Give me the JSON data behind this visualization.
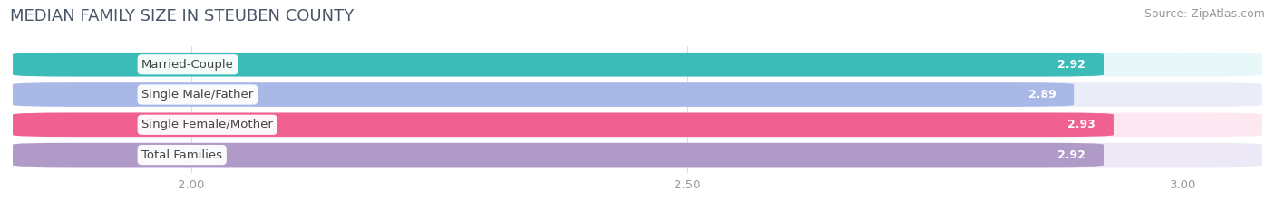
{
  "title": "MEDIAN FAMILY SIZE IN STEUBEN COUNTY",
  "source": "Source: ZipAtlas.com",
  "categories": [
    "Married-Couple",
    "Single Male/Father",
    "Single Female/Mother",
    "Total Families"
  ],
  "values": [
    2.92,
    2.89,
    2.93,
    2.92
  ],
  "bar_colors": [
    "#3bbcb8",
    "#aab8e8",
    "#f06090",
    "#b09ac8"
  ],
  "bar_bg_colors": [
    "#e8f8f8",
    "#eaecf8",
    "#fde8f2",
    "#ece8f5"
  ],
  "value_labels": [
    "2.92",
    "2.89",
    "2.93",
    "2.92"
  ],
  "xmin": 1.82,
  "xmax": 3.08,
  "xticks": [
    2.0,
    2.5,
    3.0
  ],
  "xtick_labels": [
    "2.00",
    "2.50",
    "3.00"
  ],
  "background_color": "#ffffff",
  "plot_bg_color": "#ffffff",
  "title_color": "#4a5568",
  "title_fontsize": 13,
  "label_fontsize": 9.5,
  "value_fontsize": 9,
  "source_fontsize": 9
}
